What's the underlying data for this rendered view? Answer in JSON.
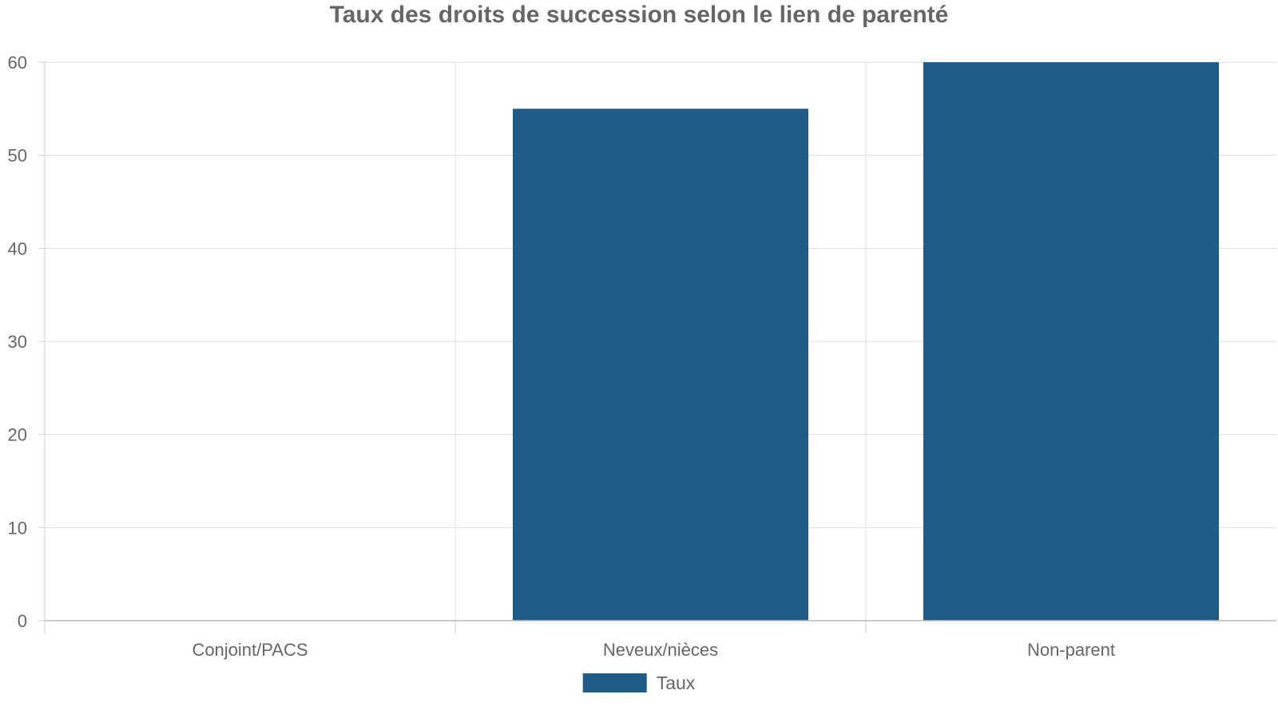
{
  "chart_data": {
    "type": "bar",
    "title": "Taux des droits de succession selon le lien de parenté",
    "xlabel": "",
    "ylabel": "",
    "categories": [
      "Conjoint/PACS",
      "Neveux/nièces",
      "Non-parent"
    ],
    "series": [
      {
        "name": "Taux",
        "values": [
          0,
          55,
          60
        ],
        "color": "#1f5c87"
      }
    ],
    "ylim": [
      0,
      60
    ],
    "yticks": [
      0,
      10,
      20,
      30,
      40,
      50,
      60
    ],
    "grid": true,
    "legend": "bottom-center"
  }
}
